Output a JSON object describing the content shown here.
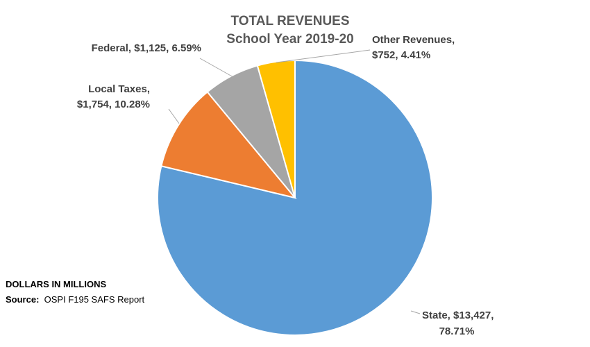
{
  "chart_data": {
    "type": "pie",
    "title": "TOTAL REVENUES",
    "subtitle": "School Year 2019-20",
    "slices": [
      {
        "name": "State",
        "value": 13427,
        "percent": 78.71,
        "color": "#5B9BD5",
        "label_line1": "State, $13,427,",
        "label_line2": "78.71%"
      },
      {
        "name": "Local Taxes",
        "value": 1754,
        "percent": 10.28,
        "color": "#ED7D31",
        "label_line1": "Local Taxes,",
        "label_line2": "$1,754, 10.28%"
      },
      {
        "name": "Federal",
        "value": 1125,
        "percent": 6.59,
        "color": "#A5A5A5",
        "label_line1": "Federal, $1,125, 6.59%",
        "label_line2": ""
      },
      {
        "name": "Other Revenues",
        "value": 752,
        "percent": 4.41,
        "color": "#FFC000",
        "label_line1": "Other Revenues,",
        "label_line2": "$752, 4.41%"
      }
    ],
    "units_note": "DOLLARS IN MILLIONS",
    "source_label": "Source:",
    "source_text": "OSPI F195 SAFS Report"
  }
}
